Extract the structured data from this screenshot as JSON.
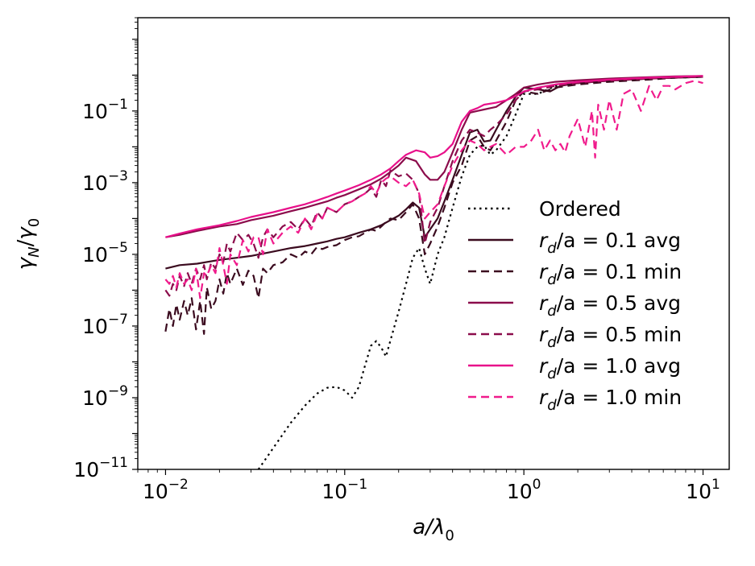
{
  "chart_data": {
    "type": "line",
    "xscale": "log",
    "yscale": "log",
    "xlim": [
      0.007,
      14
    ],
    "ylim": [
      1e-11,
      40
    ],
    "x_axis": {
      "label_base": "a/λ",
      "label_sub": "0",
      "ticks": [
        {
          "value": 0.01,
          "base": "10",
          "exp": "−2"
        },
        {
          "value": 0.1,
          "base": "10",
          "exp": "−1"
        },
        {
          "value": 1,
          "base": "10",
          "exp": "0"
        },
        {
          "value": 10,
          "base": "10",
          "exp": "1"
        }
      ]
    },
    "y_axis": {
      "label_num": "γ",
      "label_num_sub": "N",
      "label_den": "γ",
      "label_den_sub": "0",
      "ticks": [
        {
          "value": 1e-11,
          "base": "10",
          "exp": "−11"
        },
        {
          "value": 1e-09,
          "base": "10",
          "exp": "−9"
        },
        {
          "value": 1e-07,
          "base": "10",
          "exp": "−7"
        },
        {
          "value": 1e-05,
          "base": "10",
          "exp": "−5"
        },
        {
          "value": 0.001,
          "base": "10",
          "exp": "−3"
        },
        {
          "value": 0.1,
          "base": "10",
          "exp": "−1"
        }
      ]
    },
    "legend_position": "center-right",
    "series": [
      {
        "name": "Ordered",
        "legend_text": "Ordered",
        "color": "#000000",
        "style": "dotted",
        "x": [
          0.033,
          0.04,
          0.05,
          0.06,
          0.07,
          0.08,
          0.09,
          0.1,
          0.11,
          0.12,
          0.13,
          0.14,
          0.15,
          0.16,
          0.17,
          0.18,
          0.2,
          0.22,
          0.24,
          0.26,
          0.28,
          0.3,
          0.33,
          0.36,
          0.4,
          0.45,
          0.5,
          0.55,
          0.6,
          0.65,
          0.7,
          0.8,
          0.9,
          1.0,
          1.2,
          1.5,
          2,
          3,
          5,
          7,
          10
        ],
        "y": [
          1e-11,
          4e-11,
          2e-10,
          6e-10,
          1.3e-09,
          1.9e-09,
          2e-09,
          1.6e-09,
          1e-09,
          2e-09,
          8e-09,
          2.8e-08,
          3.8e-08,
          2.5e-08,
          1.4e-08,
          4e-08,
          2.5e-07,
          1.5e-06,
          8e-06,
          1.5e-05,
          4e-06,
          1.5e-06,
          1e-05,
          3e-05,
          0.0002,
          0.0015,
          0.006,
          0.01,
          0.011,
          0.006,
          0.008,
          0.02,
          0.08,
          0.3,
          0.3,
          0.5,
          0.6,
          0.7,
          0.8,
          0.85,
          0.9
        ]
      },
      {
        "name": "r_d/a = 0.1 avg",
        "legend_var": "r",
        "legend_sub": "d",
        "legend_rest": "/a = 0.1 avg",
        "color": "#3b0b1f",
        "style": "solid",
        "x": [
          0.01,
          0.012,
          0.015,
          0.02,
          0.025,
          0.03,
          0.04,
          0.05,
          0.06,
          0.07,
          0.08,
          0.09,
          0.1,
          0.12,
          0.14,
          0.16,
          0.18,
          0.2,
          0.22,
          0.24,
          0.26,
          0.28,
          0.3,
          0.33,
          0.36,
          0.4,
          0.45,
          0.5,
          0.55,
          0.6,
          0.65,
          0.7,
          0.8,
          0.9,
          1.0,
          1.2,
          1.4,
          1.6,
          2,
          3,
          5,
          7,
          10
        ],
        "y": [
          4e-06,
          5e-06,
          5.5e-06,
          7e-06,
          8e-06,
          9e-06,
          1.2e-05,
          1.5e-05,
          1.7e-05,
          2e-05,
          2.3e-05,
          2.7e-05,
          3e-05,
          4e-05,
          5e-05,
          6.5e-05,
          9e-05,
          0.00012,
          0.00018,
          0.00028,
          0.0002,
          3e-05,
          5e-05,
          0.0001,
          0.0003,
          0.0012,
          0.006,
          0.025,
          0.03,
          0.014,
          0.015,
          0.03,
          0.1,
          0.25,
          0.45,
          0.4,
          0.35,
          0.5,
          0.6,
          0.7,
          0.8,
          0.85,
          0.9
        ]
      },
      {
        "name": "r_d/a = 0.1 min",
        "legend_var": "r",
        "legend_sub": "d",
        "legend_rest": "/a = 0.1 min",
        "color": "#3b0b1f",
        "style": "dashed",
        "x": [
          0.01,
          0.0105,
          0.011,
          0.0115,
          0.012,
          0.0127,
          0.0133,
          0.014,
          0.0148,
          0.0156,
          0.0164,
          0.017,
          0.018,
          0.019,
          0.02,
          0.021,
          0.022,
          0.023,
          0.025,
          0.027,
          0.029,
          0.031,
          0.033,
          0.035,
          0.037,
          0.04,
          0.045,
          0.05,
          0.055,
          0.06,
          0.065,
          0.07,
          0.075,
          0.08,
          0.09,
          0.1,
          0.11,
          0.12,
          0.13,
          0.14,
          0.15,
          0.16,
          0.17,
          0.18,
          0.2,
          0.22,
          0.24,
          0.26,
          0.28,
          0.3,
          0.33,
          0.36,
          0.4,
          0.45,
          0.5,
          0.55,
          0.6,
          0.65,
          0.7,
          0.8,
          0.9,
          1.0,
          1.2,
          1.5,
          2,
          3,
          5,
          7,
          10
        ],
        "y": [
          7e-08,
          3e-07,
          1e-07,
          4e-07,
          1.5e-07,
          5e-07,
          2e-07,
          6e-07,
          8e-08,
          5e-07,
          6e-08,
          1.2e-06,
          3e-07,
          5e-07,
          2e-06,
          8e-07,
          3e-06,
          1.5e-06,
          4e-06,
          1.4e-06,
          3.5e-06,
          2.5e-06,
          6e-07,
          4e-06,
          3e-06,
          5e-06,
          6e-06,
          1e-05,
          8e-06,
          1.2e-05,
          1e-05,
          1.6e-05,
          1.4e-05,
          1.6e-05,
          1.8e-05,
          2.5e-05,
          3e-05,
          3.2e-05,
          4e-05,
          5e-05,
          4.5e-05,
          6e-05,
          8e-05,
          0.0001,
          9e-05,
          0.00015,
          0.00025,
          0.0001,
          1e-05,
          2e-05,
          6e-05,
          0.0002,
          0.001,
          0.003,
          0.015,
          0.02,
          0.01,
          0.008,
          0.015,
          0.05,
          0.2,
          0.35,
          0.3,
          0.45,
          0.55,
          0.65,
          0.75,
          0.85,
          0.9
        ]
      },
      {
        "name": "r_d/a = 0.5 avg",
        "legend_var": "r",
        "legend_sub": "d",
        "legend_rest": "/a = 0.5 avg",
        "color": "#8b0c4b",
        "style": "solid",
        "x": [
          0.01,
          0.012,
          0.015,
          0.02,
          0.025,
          0.03,
          0.04,
          0.05,
          0.06,
          0.07,
          0.08,
          0.09,
          0.1,
          0.12,
          0.14,
          0.16,
          0.18,
          0.2,
          0.22,
          0.25,
          0.28,
          0.3,
          0.33,
          0.36,
          0.4,
          0.45,
          0.5,
          0.55,
          0.6,
          0.65,
          0.7,
          0.8,
          0.9,
          1.0,
          1.2,
          1.5,
          2,
          3,
          5,
          7,
          10
        ],
        "y": [
          3e-05,
          3.5e-05,
          4.5e-05,
          6e-05,
          7e-05,
          9e-05,
          0.00012,
          0.00016,
          0.0002,
          0.00025,
          0.0003,
          0.00038,
          0.00045,
          0.00065,
          0.0009,
          0.0013,
          0.002,
          0.003,
          0.005,
          0.004,
          0.0017,
          0.0012,
          0.0012,
          0.002,
          0.007,
          0.03,
          0.09,
          0.1,
          0.11,
          0.12,
          0.13,
          0.2,
          0.3,
          0.45,
          0.55,
          0.65,
          0.72,
          0.8,
          0.88,
          0.92,
          0.95
        ]
      },
      {
        "name": "r_d/a = 0.5 min",
        "legend_var": "r",
        "legend_sub": "d",
        "legend_rest": "/a = 0.5 min",
        "color": "#8b0c4b",
        "style": "dashed",
        "x": [
          0.01,
          0.0105,
          0.011,
          0.0115,
          0.012,
          0.0127,
          0.0133,
          0.014,
          0.0148,
          0.0156,
          0.0164,
          0.017,
          0.018,
          0.019,
          0.02,
          0.021,
          0.022,
          0.023,
          0.025,
          0.027,
          0.029,
          0.031,
          0.033,
          0.035,
          0.037,
          0.04,
          0.045,
          0.05,
          0.055,
          0.06,
          0.065,
          0.07,
          0.075,
          0.08,
          0.09,
          0.1,
          0.11,
          0.12,
          0.13,
          0.14,
          0.15,
          0.16,
          0.17,
          0.18,
          0.2,
          0.22,
          0.24,
          0.26,
          0.28,
          0.3,
          0.33,
          0.36,
          0.4,
          0.45,
          0.5,
          0.55,
          0.6,
          0.65,
          0.7,
          0.8,
          0.9,
          1.0,
          1.2,
          1.5,
          2,
          3,
          5,
          7,
          10
        ],
        "y": [
          1e-06,
          7e-07,
          1.5e-06,
          1e-06,
          2.5e-06,
          1.3e-06,
          3e-06,
          1.5e-06,
          4e-06,
          2e-06,
          5e-06,
          2e-06,
          6e-06,
          4e-06,
          1e-05,
          6e-06,
          2e-05,
          1.2e-05,
          4e-05,
          2.5e-05,
          3.5e-05,
          2e-05,
          8e-06,
          3e-05,
          5e-05,
          3e-05,
          6e-05,
          8e-05,
          5e-05,
          0.0001,
          6e-05,
          0.00015,
          0.0001,
          0.0002,
          0.00015,
          0.00025,
          0.0003,
          0.0004,
          0.0005,
          0.0007,
          0.0004,
          0.0012,
          0.0008,
          0.0022,
          0.0015,
          0.0018,
          0.0012,
          0.0005,
          2e-05,
          8e-05,
          0.0002,
          0.0008,
          0.004,
          0.015,
          0.03,
          0.025,
          0.02,
          0.03,
          0.04,
          0.08,
          0.2,
          0.35,
          0.4,
          0.5,
          0.6,
          0.7,
          0.8,
          0.85,
          0.9
        ]
      },
      {
        "name": "r_d/a = 1.0 avg",
        "legend_var": "r",
        "legend_sub": "d",
        "legend_rest": "/a = 1.0 avg",
        "color": "#e8108a",
        "style": "solid",
        "x": [
          0.01,
          0.012,
          0.015,
          0.02,
          0.025,
          0.03,
          0.04,
          0.05,
          0.06,
          0.07,
          0.08,
          0.09,
          0.1,
          0.12,
          0.14,
          0.16,
          0.18,
          0.2,
          0.22,
          0.25,
          0.28,
          0.3,
          0.33,
          0.36,
          0.4,
          0.45,
          0.5,
          0.55,
          0.6,
          0.7,
          0.8,
          0.9,
          1.0,
          1.2,
          1.5,
          2,
          3,
          5,
          7,
          10
        ],
        "y": [
          3e-05,
          3.8e-05,
          5e-05,
          6.5e-05,
          8.5e-05,
          0.00011,
          0.00015,
          0.0002,
          0.00025,
          0.00032,
          0.0004,
          0.0005,
          0.0006,
          0.00085,
          0.0012,
          0.0017,
          0.0025,
          0.004,
          0.006,
          0.008,
          0.007,
          0.005,
          0.0055,
          0.007,
          0.012,
          0.05,
          0.1,
          0.12,
          0.15,
          0.17,
          0.2,
          0.26,
          0.35,
          0.45,
          0.55,
          0.65,
          0.75,
          0.85,
          0.9,
          0.95
        ]
      },
      {
        "name": "r_d/a = 1.0 min",
        "legend_var": "r",
        "legend_sub": "d",
        "legend_rest": "/a = 1.0 min",
        "color": "#f01b8c",
        "style": "dashed",
        "x": [
          0.01,
          0.0105,
          0.011,
          0.0115,
          0.012,
          0.0127,
          0.0133,
          0.014,
          0.0148,
          0.0156,
          0.0164,
          0.017,
          0.018,
          0.019,
          0.02,
          0.021,
          0.022,
          0.023,
          0.025,
          0.027,
          0.029,
          0.031,
          0.033,
          0.035,
          0.037,
          0.04,
          0.045,
          0.05,
          0.055,
          0.06,
          0.065,
          0.07,
          0.075,
          0.08,
          0.09,
          0.1,
          0.11,
          0.12,
          0.13,
          0.14,
          0.15,
          0.16,
          0.17,
          0.18,
          0.2,
          0.22,
          0.24,
          0.26,
          0.28,
          0.3,
          0.33,
          0.36,
          0.4,
          0.45,
          0.5,
          0.55,
          0.6,
          0.65,
          0.7,
          0.8,
          0.9,
          1.0,
          1.1,
          1.2,
          1.3,
          1.4,
          1.5,
          1.6,
          1.7,
          1.8,
          2.0,
          2.2,
          2.4,
          2.5,
          2.6,
          2.8,
          3.0,
          3.3,
          3.6,
          4.0,
          4.5,
          5.0,
          5.5,
          6.0,
          6.5,
          7.0,
          8.0,
          9.0,
          10.0
        ],
        "y": [
          2e-06,
          1.5e-06,
          2.5e-06,
          1.2e-06,
          3e-06,
          1.5e-06,
          2e-06,
          1e-06,
          4e-06,
          6e-07,
          3e-06,
          2.5e-06,
          5e-06,
          3e-06,
          1.5e-05,
          5e-06,
          1.5e-06,
          1e-05,
          5e-06,
          2.5e-05,
          1.2e-05,
          3e-05,
          3e-05,
          1e-05,
          5e-05,
          2e-05,
          4e-05,
          6e-05,
          4e-05,
          0.0001,
          5e-05,
          0.00013,
          0.0001,
          0.0002,
          0.00015,
          0.00025,
          0.0003,
          0.0004,
          0.0005,
          0.0008,
          0.0005,
          0.001,
          0.0013,
          0.0015,
          0.001,
          0.0008,
          0.0012,
          0.0005,
          0.0001,
          0.00015,
          0.00025,
          0.0008,
          0.003,
          0.008,
          0.015,
          0.012,
          0.008,
          0.01,
          0.012,
          0.006,
          0.01,
          0.01,
          0.015,
          0.03,
          0.008,
          0.015,
          0.008,
          0.012,
          0.007,
          0.02,
          0.06,
          0.01,
          0.1,
          0.005,
          0.15,
          0.03,
          0.2,
          0.03,
          0.3,
          0.4,
          0.1,
          0.5,
          0.2,
          0.5,
          0.5,
          0.4,
          0.6,
          0.7,
          0.6
        ]
      }
    ]
  }
}
